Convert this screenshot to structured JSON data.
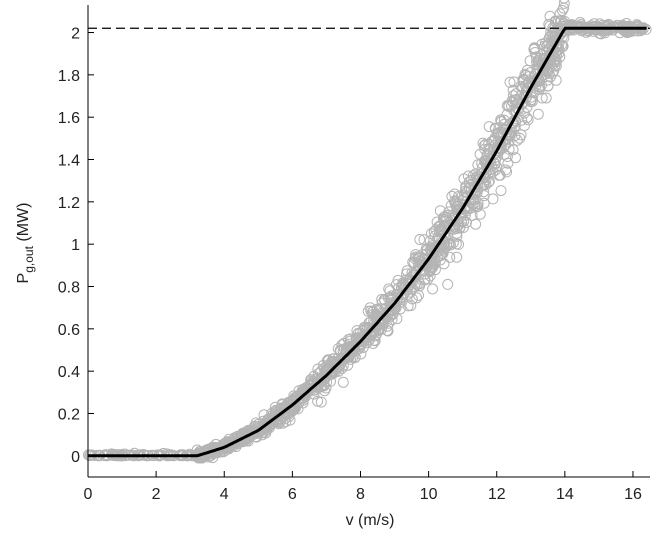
{
  "chart_data": {
    "type": "scatter",
    "xlabel": "v (m/s)",
    "ylabel": {
      "main": "P",
      "sub": "g,out",
      "unit": " (MW)"
    },
    "xlim": [
      0,
      16.5
    ],
    "ylim": [
      -0.1,
      2.13
    ],
    "x_ticks": [
      0,
      2,
      4,
      6,
      8,
      10,
      12,
      14,
      16
    ],
    "x_tick_labels": [
      "0",
      "2",
      "4",
      "6",
      "8",
      "10",
      "12",
      "14",
      "16"
    ],
    "y_ticks": [
      0,
      0.2,
      0.4,
      0.6,
      0.8,
      1,
      1.2,
      1.4,
      1.6,
      1.8,
      2
    ],
    "y_tick_labels": [
      "0",
      "0.2",
      "0.4",
      "0.6",
      "0.8",
      "1",
      "1.2",
      "1.4",
      "1.6",
      "1.8",
      "2"
    ],
    "grid": false,
    "rated_power_line": {
      "y": 2.02,
      "style": "dashed",
      "color": "#000000"
    },
    "power_curve": {
      "color": "#000000",
      "x": [
        0,
        3.2,
        4,
        5,
        6,
        7,
        8,
        9,
        10,
        11,
        12,
        13,
        14,
        16.4
      ],
      "y": [
        0.0,
        0.0,
        0.04,
        0.12,
        0.24,
        0.38,
        0.54,
        0.72,
        0.93,
        1.17,
        1.44,
        1.74,
        2.02,
        2.02
      ]
    },
    "scatter_points": {
      "color": "#b4b4b4",
      "marker": "circle-open",
      "approx_count": 1500,
      "x_range": [
        0,
        16.4
      ]
    },
    "colors": {
      "scatter": "#b4b4b4",
      "curve": "#000000",
      "axes": "#000000"
    }
  }
}
